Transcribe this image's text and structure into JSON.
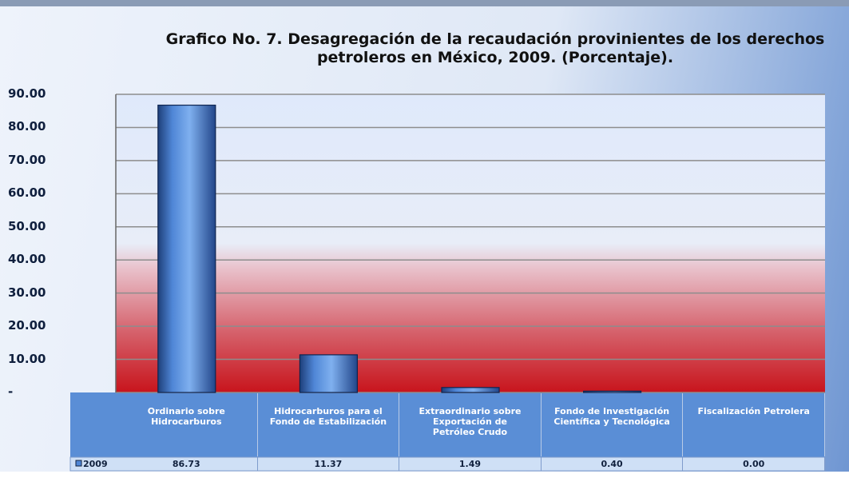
{
  "chart_data": {
    "type": "bar",
    "title": "Grafico No. 7. Desagregación de la recaudación provinientes de los derechos petroleros en México, 2009. (Porcentaje).",
    "categories": [
      "Ordinario sobre Hidrocarburos",
      "Hidrocarburos para el Fondo de Estabilización",
      "Extraordinario sobre Exportación de Petróleo Crudo",
      "Fondo de Investigación Científica y Tecnológica",
      "Fiscalización Petrolera"
    ],
    "series": [
      {
        "name": "2009",
        "color": "#4f86d6",
        "values": [
          86.73,
          11.37,
          1.49,
          0.4,
          0.0
        ],
        "value_labels": [
          "86.73",
          "11.37",
          "1.49",
          "0.40",
          "0.00"
        ]
      }
    ],
    "ylim": [
      0,
      90
    ],
    "yticks": [
      {
        "value": 0,
        "label": "-"
      },
      {
        "value": 10,
        "label": "10.00"
      },
      {
        "value": 20,
        "label": "20.00"
      },
      {
        "value": 30,
        "label": "30.00"
      },
      {
        "value": 40,
        "label": "40.00"
      },
      {
        "value": 50,
        "label": "50.00"
      },
      {
        "value": 60,
        "label": "60.00"
      },
      {
        "value": 70,
        "label": "70.00"
      },
      {
        "value": 80,
        "label": "80.00"
      },
      {
        "value": 90,
        "label": "90.00"
      }
    ],
    "grid": true
  }
}
